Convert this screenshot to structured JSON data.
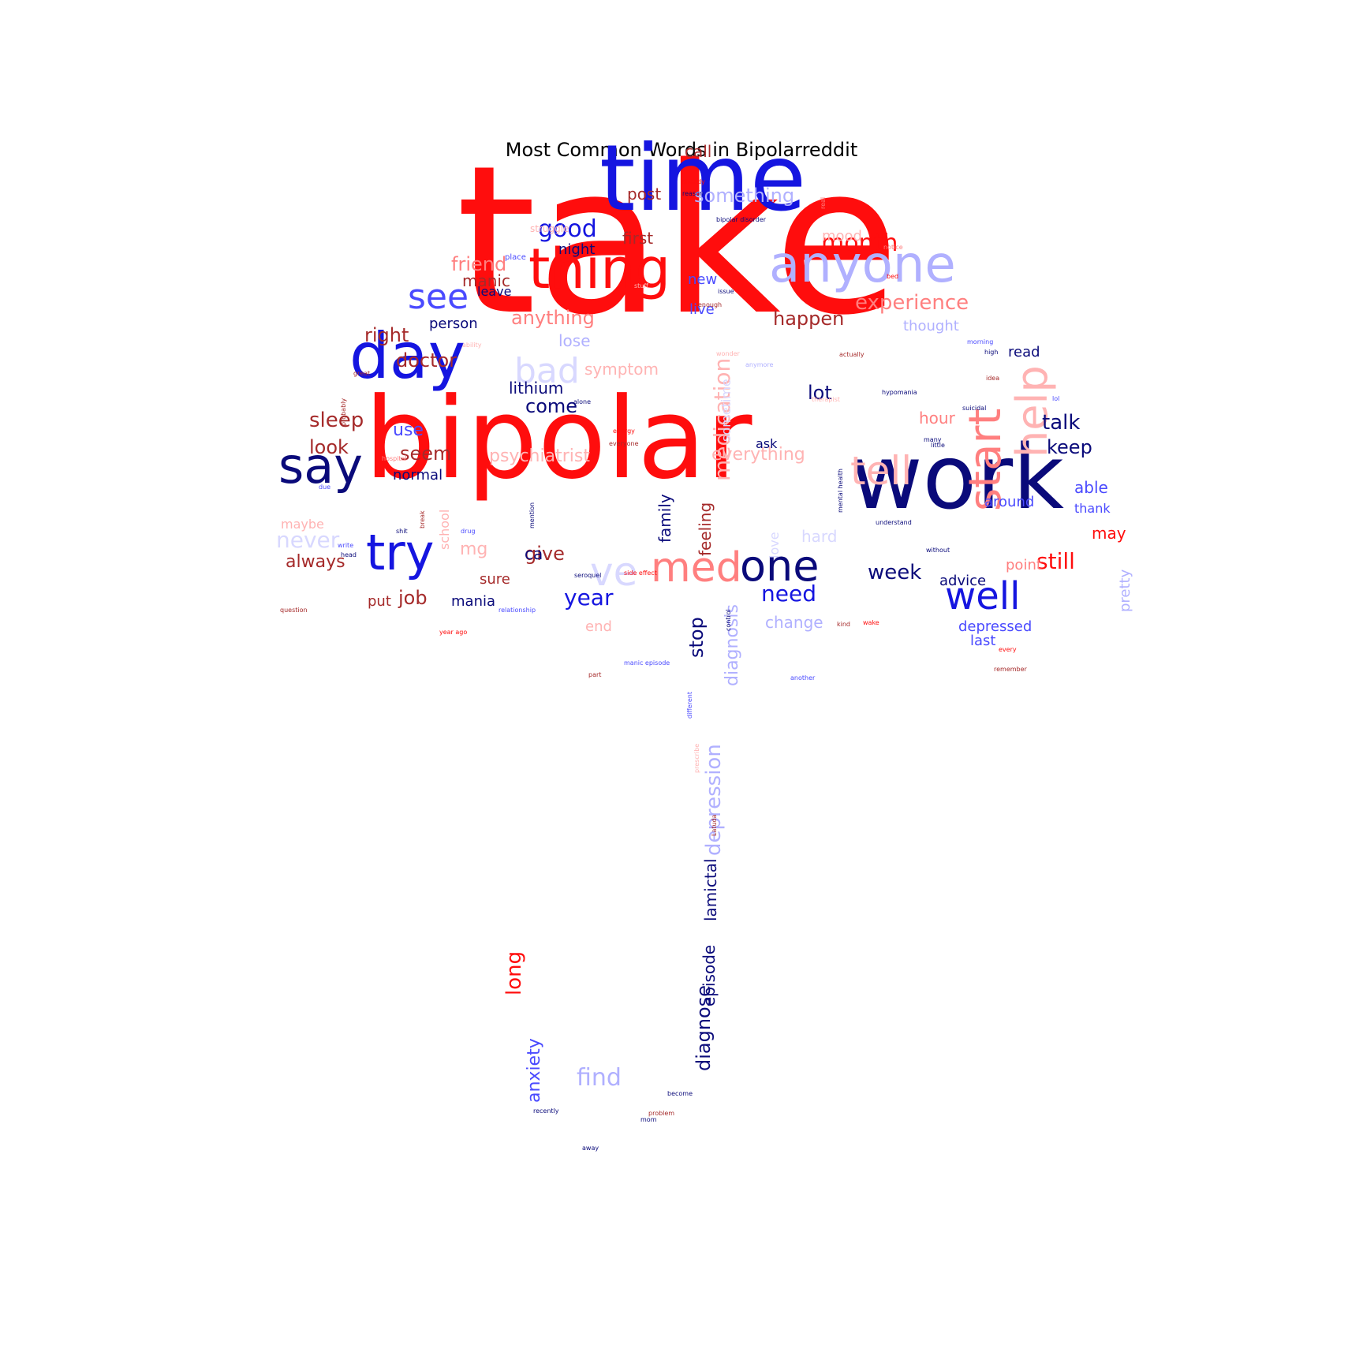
{
  "title": "Most Common Words in Bipolarreddit",
  "palette": {
    "red": "#ff0d0d",
    "light_red": "#ff7f7f",
    "pale_red": "#ffb3b3",
    "dark_red": "#a52a2a",
    "blue": "#1515e0",
    "mid_blue": "#4a4aff",
    "pale_blue": "#b0b0ff",
    "faint_blue": "#d8d8ff",
    "navy": "#0a0a7a"
  },
  "words": [
    {
      "text": "take",
      "color": "red"
    },
    {
      "text": "bipolar",
      "color": "red"
    },
    {
      "text": "time",
      "color": "blue"
    },
    {
      "text": "work",
      "color": "navy"
    },
    {
      "text": "thing",
      "color": "red"
    },
    {
      "text": "anyone",
      "color": "pale_blue"
    },
    {
      "text": "day",
      "color": "blue"
    },
    {
      "text": "say",
      "color": "navy"
    },
    {
      "text": "start",
      "color": "light_red"
    },
    {
      "text": "help",
      "color": "pale_red"
    },
    {
      "text": "tell",
      "color": "pale_red"
    },
    {
      "text": "try",
      "color": "blue"
    },
    {
      "text": "med",
      "color": "light_red"
    },
    {
      "text": "one",
      "color": "navy"
    },
    {
      "text": "well",
      "color": "blue"
    },
    {
      "text": "ve",
      "color": "faint_blue"
    },
    {
      "text": "bad",
      "color": "faint_blue"
    },
    {
      "text": "see",
      "color": "mid_blue"
    },
    {
      "text": "medication",
      "color": "pale_red"
    },
    {
      "text": "depression",
      "color": "pale_blue"
    },
    {
      "text": "diagnose",
      "color": "navy"
    },
    {
      "text": "good",
      "color": "blue"
    },
    {
      "text": "month",
      "color": "red"
    },
    {
      "text": "experience",
      "color": "light_red"
    },
    {
      "text": "friend",
      "color": "light_red"
    },
    {
      "text": "something",
      "color": "pale_blue"
    },
    {
      "text": "anything",
      "color": "light_red"
    },
    {
      "text": "happen",
      "color": "dark_red"
    },
    {
      "text": "right",
      "color": "dark_red"
    },
    {
      "text": "doctor",
      "color": "dark_red"
    },
    {
      "text": "sleep",
      "color": "dark_red"
    },
    {
      "text": "look",
      "color": "dark_red"
    },
    {
      "text": "talk",
      "color": "navy"
    },
    {
      "text": "keep",
      "color": "navy"
    },
    {
      "text": "lot",
      "color": "navy"
    },
    {
      "text": "week",
      "color": "navy"
    },
    {
      "text": "need",
      "color": "blue"
    },
    {
      "text": "year",
      "color": "blue"
    },
    {
      "text": "still",
      "color": "red"
    },
    {
      "text": "always",
      "color": "dark_red"
    },
    {
      "text": "never",
      "color": "faint_blue"
    },
    {
      "text": "give",
      "color": "dark_red"
    },
    {
      "text": "job",
      "color": "dark_red"
    },
    {
      "text": "find",
      "color": "pale_blue"
    },
    {
      "text": "long",
      "color": "red"
    },
    {
      "text": "anxiety",
      "color": "mid_blue"
    },
    {
      "text": "episode",
      "color": "navy"
    },
    {
      "text": "lamictal",
      "color": "navy"
    },
    {
      "text": "stop",
      "color": "navy"
    },
    {
      "text": "diagnosis",
      "color": "pale_blue"
    },
    {
      "text": "psychiatrist",
      "color": "pale_red"
    },
    {
      "text": "everything",
      "color": "pale_red"
    },
    {
      "text": "lithium",
      "color": "navy"
    },
    {
      "text": "come",
      "color": "navy"
    },
    {
      "text": "post",
      "color": "dark_red"
    },
    {
      "text": "first",
      "color": "dark_red"
    },
    {
      "text": "call",
      "color": "dark_red"
    },
    {
      "text": "night",
      "color": "navy"
    },
    {
      "text": "manic",
      "color": "dark_red"
    },
    {
      "text": "leave",
      "color": "navy"
    },
    {
      "text": "person",
      "color": "navy"
    },
    {
      "text": "new",
      "color": "mid_blue"
    },
    {
      "text": "live",
      "color": "mid_blue"
    },
    {
      "text": "lose",
      "color": "pale_blue"
    },
    {
      "text": "symptom",
      "color": "pale_red"
    },
    {
      "text": "use",
      "color": "mid_blue"
    },
    {
      "text": "seem",
      "color": "dark_red"
    },
    {
      "text": "normal",
      "color": "navy"
    },
    {
      "text": "family",
      "color": "navy"
    },
    {
      "text": "feeling",
      "color": "dark_red"
    },
    {
      "text": "mg",
      "color": "pale_red"
    },
    {
      "text": "ca",
      "color": "navy"
    },
    {
      "text": "sure",
      "color": "dark_red"
    },
    {
      "text": "mania",
      "color": "navy"
    },
    {
      "text": "put",
      "color": "dark_red"
    },
    {
      "text": "end",
      "color": "pale_red"
    },
    {
      "text": "change",
      "color": "pale_blue"
    },
    {
      "text": "depressed",
      "color": "mid_blue"
    },
    {
      "text": "last",
      "color": "mid_blue"
    },
    {
      "text": "advice",
      "color": "navy"
    },
    {
      "text": "point",
      "color": "light_red"
    },
    {
      "text": "hour",
      "color": "light_red"
    },
    {
      "text": "read",
      "color": "navy"
    },
    {
      "text": "ask",
      "color": "navy"
    },
    {
      "text": "able",
      "color": "mid_blue"
    },
    {
      "text": "around",
      "color": "mid_blue"
    },
    {
      "text": "thank",
      "color": "mid_blue"
    },
    {
      "text": "may",
      "color": "red"
    },
    {
      "text": "pretty",
      "color": "pale_blue"
    },
    {
      "text": "mood",
      "color": "pale_red"
    },
    {
      "text": "thought",
      "color": "pale_blue"
    },
    {
      "text": "maybe",
      "color": "pale_red"
    },
    {
      "text": "hard",
      "color": "faint_blue"
    },
    {
      "text": "sometime",
      "color": "faint_blue"
    },
    {
      "text": "school",
      "color": "pale_red"
    },
    {
      "text": "love",
      "color": "faint_blue"
    },
    {
      "text": "struggle",
      "color": "pale_red"
    },
    {
      "text": "place",
      "color": "mid_blue"
    },
    {
      "text": "already",
      "color": "red"
    },
    {
      "text": "reason",
      "color": "navy"
    },
    {
      "text": "bipolar disorder",
      "color": "navy"
    },
    {
      "text": "seroquel",
      "color": "navy"
    },
    {
      "text": "side effect",
      "color": "red"
    },
    {
      "text": "relationship",
      "color": "mid_blue"
    },
    {
      "text": "manic episode",
      "color": "mid_blue"
    },
    {
      "text": "hypomania",
      "color": "navy"
    },
    {
      "text": "therapist",
      "color": "pale_red"
    },
    {
      "text": "mental health",
      "color": "navy"
    },
    {
      "text": "different",
      "color": "mid_blue"
    },
    {
      "text": "become",
      "color": "navy"
    },
    {
      "text": "recently",
      "color": "navy"
    },
    {
      "text": "problem",
      "color": "dark_red"
    },
    {
      "text": "away",
      "color": "navy"
    },
    {
      "text": "another",
      "color": "mid_blue"
    },
    {
      "text": "part",
      "color": "dark_red"
    },
    {
      "text": "year ago",
      "color": "red"
    },
    {
      "text": "question",
      "color": "dark_red"
    },
    {
      "text": "probably",
      "color": "dark_red"
    },
    {
      "text": "hospital",
      "color": "light_red"
    },
    {
      "text": "alone",
      "color": "navy"
    },
    {
      "text": "energy",
      "color": "red"
    },
    {
      "text": "everyone",
      "color": "dark_red"
    },
    {
      "text": "understand",
      "color": "navy"
    },
    {
      "text": "without",
      "color": "navy"
    },
    {
      "text": "little",
      "color": "navy"
    },
    {
      "text": "many",
      "color": "navy"
    },
    {
      "text": "idea",
      "color": "dark_red"
    },
    {
      "text": "morning",
      "color": "mid_blue"
    },
    {
      "text": "high",
      "color": "navy"
    },
    {
      "text": "actually",
      "color": "dark_red"
    },
    {
      "text": "issue",
      "color": "navy"
    },
    {
      "text": "enough",
      "color": "dark_red"
    },
    {
      "text": "bed",
      "color": "red"
    },
    {
      "text": "notice",
      "color": "light_red"
    },
    {
      "text": "real",
      "color": "light_red"
    },
    {
      "text": "stuff",
      "color": "pale_red"
    },
    {
      "text": "ability",
      "color": "pale_red"
    },
    {
      "text": "wonder",
      "color": "pale_red"
    },
    {
      "text": "anymore",
      "color": "pale_blue"
    },
    {
      "text": "great",
      "color": "dark_red"
    },
    {
      "text": "write",
      "color": "mid_blue"
    },
    {
      "text": "head",
      "color": "navy"
    },
    {
      "text": "due",
      "color": "mid_blue"
    },
    {
      "text": "shit",
      "color": "navy"
    },
    {
      "text": "drug",
      "color": "mid_blue"
    },
    {
      "text": "mention",
      "color": "navy"
    },
    {
      "text": "break",
      "color": "dark_red"
    },
    {
      "text": "kind",
      "color": "dark_red"
    },
    {
      "text": "wake",
      "color": "red"
    },
    {
      "text": "every",
      "color": "red"
    },
    {
      "text": "remember",
      "color": "dark_red"
    },
    {
      "text": "control",
      "color": "navy"
    },
    {
      "text": "prescribe",
      "color": "pale_red"
    },
    {
      "text": "Latuda",
      "color": "dark_red"
    },
    {
      "text": "mom",
      "color": "navy"
    },
    {
      "text": "lol",
      "color": "mid_blue"
    },
    {
      "text": "suicidal",
      "color": "navy"
    }
  ]
}
